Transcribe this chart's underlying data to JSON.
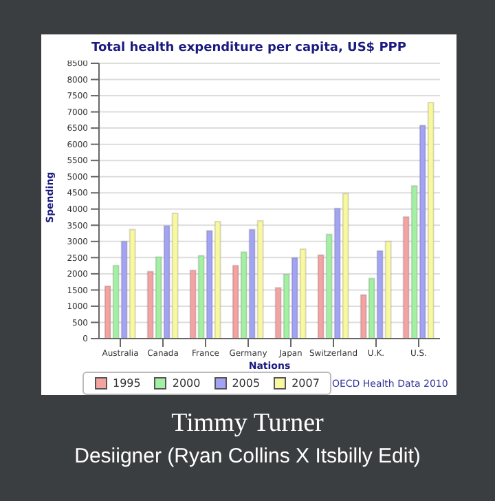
{
  "chart_data": {
    "type": "bar",
    "title": "Total health expenditure per capita, US$ PPP",
    "xlabel": "Nations",
    "ylabel": "Spending",
    "categories": [
      "Australia",
      "Canada",
      "France",
      "Germany",
      "Japan",
      "Switzerland",
      "U.K.",
      "U.S."
    ],
    "series": [
      {
        "name": "1995",
        "color": "#f4a3a3",
        "values": [
          1620,
          2070,
          2110,
          2260,
          1570,
          2580,
          1350,
          3760
        ]
      },
      {
        "name": "2000",
        "color": "#a3f0a3",
        "values": [
          2260,
          2520,
          2560,
          2670,
          1980,
          3220,
          1860,
          4720
        ]
      },
      {
        "name": "2005",
        "color": "#a3a3f4",
        "values": [
          3000,
          3480,
          3330,
          3370,
          2490,
          4020,
          2710,
          6580
        ]
      },
      {
        "name": "2007",
        "color": "#f8f8a0",
        "values": [
          3370,
          3870,
          3610,
          3640,
          2760,
          4480,
          3000,
          7290
        ]
      }
    ],
    "ylim": [
      0,
      8500
    ],
    "yticks": [
      0,
      500,
      1000,
      1500,
      2000,
      2500,
      3000,
      3500,
      4000,
      4500,
      5000,
      5500,
      6000,
      6500,
      7000,
      7500,
      8000,
      8500
    ],
    "grid": "y",
    "legend": "bottom",
    "annotations": [
      "OECD Health Data 2010",
      "Timmy Turner",
      "Desiigner (Ryan Collins X Itsbilly Edit)"
    ]
  }
}
